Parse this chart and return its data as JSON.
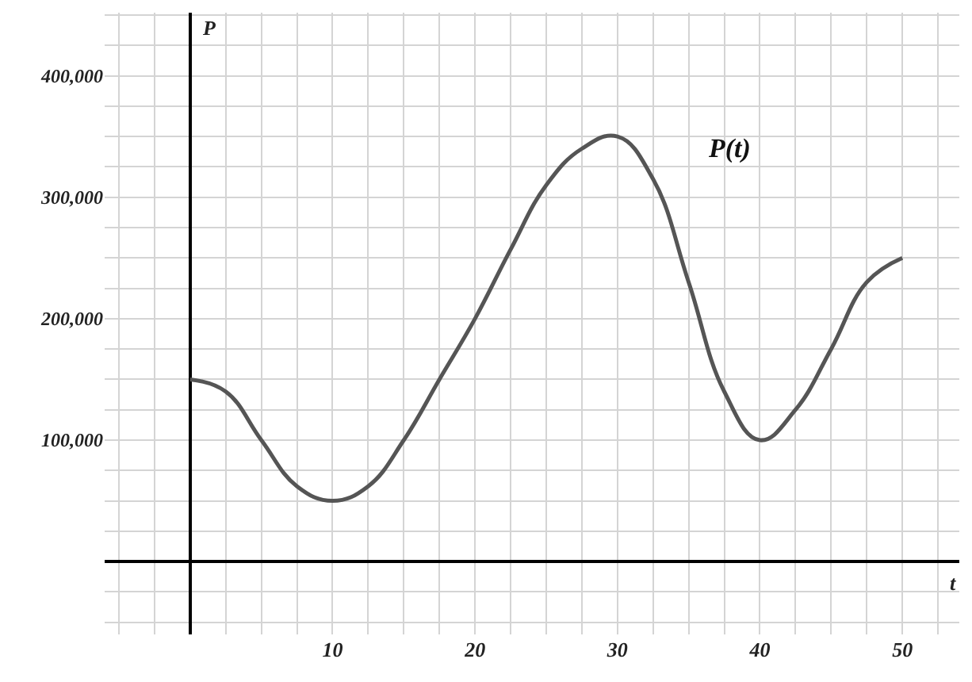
{
  "chart_data": {
    "type": "line",
    "xlabel": "t",
    "ylabel": "P",
    "x": [
      0,
      2.5,
      5,
      7.5,
      10,
      12.5,
      15,
      17.5,
      20,
      22.5,
      25,
      27.5,
      30,
      32.5,
      35,
      37.5,
      40,
      42.5,
      45,
      47.5,
      50
    ],
    "series": [
      {
        "name": "P(t)",
        "color": "#555555",
        "values": [
          150000,
          140000,
          100000,
          62000,
          50000,
          62000,
          100000,
          150000,
          200000,
          257000,
          310000,
          340000,
          350000,
          315000,
          230000,
          140000,
          100000,
          125000,
          175000,
          230000,
          250000
        ]
      }
    ],
    "xlim": [
      -6,
      54
    ],
    "ylim": [
      -60000,
      452000
    ],
    "xticks": [
      {
        "value": -5,
        "label": null
      },
      {
        "value": -2.5,
        "label": null
      },
      {
        "value": 2.5,
        "label": null
      },
      {
        "value": 5,
        "label": null
      },
      {
        "value": 7.5,
        "label": null
      },
      10,
      {
        "value": 12.5,
        "label": null
      },
      {
        "value": 15,
        "label": null
      },
      {
        "value": 17.5,
        "label": null
      },
      20,
      {
        "value": 22.5,
        "label": null
      },
      {
        "value": 25,
        "label": null
      },
      {
        "value": 27.5,
        "label": null
      },
      30,
      {
        "value": 32.5,
        "label": null
      },
      {
        "value": 35,
        "label": null
      },
      {
        "value": 37.5,
        "label": null
      },
      40,
      {
        "value": 42.5,
        "label": null
      },
      {
        "value": 45,
        "label": null
      },
      {
        "value": 47.5,
        "label": null
      },
      50,
      {
        "value": 52.5,
        "label": null
      }
    ],
    "yticks": [
      {
        "value": -50000,
        "label": null
      },
      {
        "value": -25000,
        "label": null
      },
      {
        "value": 25000,
        "label": null
      },
      {
        "value": 50000,
        "label": null
      },
      {
        "value": 75000,
        "label": null
      },
      {
        "value": 100000,
        "label": "100,000"
      },
      {
        "value": 125000,
        "label": null
      },
      {
        "value": 150000,
        "label": null
      },
      {
        "value": 175000,
        "label": null
      },
      {
        "value": 200000,
        "label": "200,000"
      },
      {
        "value": 225000,
        "label": null
      },
      {
        "value": 250000,
        "label": null
      },
      {
        "value": 275000,
        "label": null
      },
      {
        "value": 300000,
        "label": "300,000"
      },
      {
        "value": 325000,
        "label": null
      },
      {
        "value": 350000,
        "label": null
      },
      {
        "value": 375000,
        "label": null
      },
      {
        "value": 400000,
        "label": "400,000"
      },
      {
        "value": 425000,
        "label": null
      },
      {
        "value": 450000,
        "label": null
      }
    ],
    "grid": true,
    "legend": false,
    "marker": "none",
    "line_style": "solid"
  }
}
